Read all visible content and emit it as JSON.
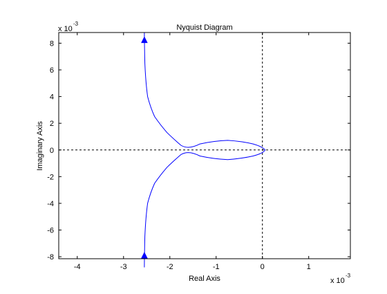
{
  "chart_data": {
    "type": "line",
    "title": "Nyquist Diagram",
    "xlabel": "Real Axis",
    "ylabel": "Imaginary Axis",
    "x_scale_label": "x 10",
    "x_scale_exp": "-3",
    "y_scale_label": "x 10",
    "y_scale_exp": "-3",
    "xlim": [
      -4.4,
      1.9
    ],
    "ylim": [
      -8.15,
      8.8
    ],
    "xticks": [
      -4,
      -3,
      -2,
      -1,
      0,
      1
    ],
    "yticks": [
      -8,
      -6,
      -4,
      -2,
      0,
      2,
      4,
      6,
      8
    ],
    "grid": false,
    "reference_lines": {
      "x": 0,
      "y": 0,
      "style": "dashed"
    },
    "series": [
      {
        "color": "#0000ff",
        "x": [
          -2.55,
          -2.55,
          -2.54,
          -2.52,
          -2.48,
          -2.42,
          -2.33,
          -2.21,
          -2.06,
          -1.88,
          -1.76,
          -1.6,
          -1.35,
          -1.05,
          -0.75,
          -0.45,
          -0.2,
          0.0,
          0.06,
          0.02,
          -0.2,
          -0.45,
          -0.75,
          -1.05,
          -1.35,
          -1.6,
          -1.76,
          -1.88,
          -2.06,
          -2.21,
          -2.33,
          -2.42,
          -2.48,
          -2.52,
          -2.54,
          -2.55,
          -2.55
        ],
        "y": [
          8.8,
          8.2,
          6.5,
          5.0,
          4.0,
          3.2,
          2.5,
          1.9,
          1.3,
          0.7,
          0.35,
          0.0,
          0.45,
          0.68,
          0.72,
          0.65,
          0.45,
          0.25,
          0.0,
          -0.25,
          -0.45,
          -0.65,
          -0.72,
          -0.68,
          -0.45,
          0.0,
          -0.35,
          -0.7,
          -1.3,
          -1.9,
          -2.5,
          -3.2,
          -4.0,
          -5.0,
          -6.5,
          -8.2,
          -8.8
        ]
      }
    ],
    "arrows": [
      {
        "x": -2.55,
        "y": 8.2,
        "direction": "up"
      },
      {
        "x": -2.55,
        "y": -7.95,
        "direction": "up"
      }
    ]
  }
}
